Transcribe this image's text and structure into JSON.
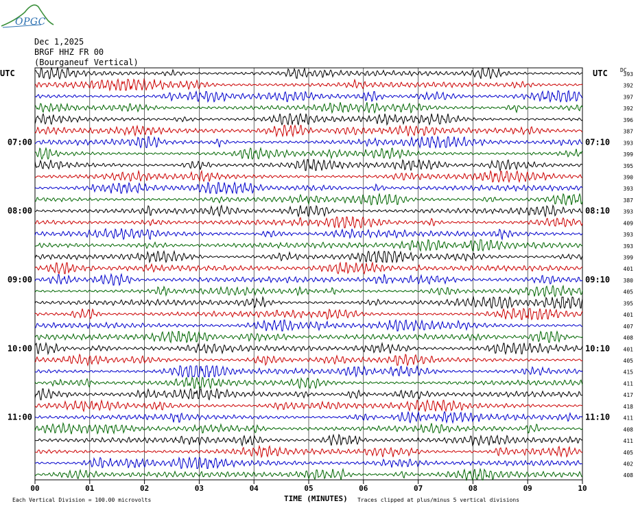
{
  "logo": {
    "text": "OPGC"
  },
  "header": {
    "date": "Dec 1,2025",
    "station": "BRGF HHZ FR 00",
    "location": "(Bourganeuf Vertical)"
  },
  "left_axis_title": "UTC",
  "right_axis_title": "UTC",
  "right_col_title": "DC",
  "footer": {
    "left_note": "Each Vertical Division =  100.00 microvolts",
    "xlabel": "TIME (MINUTES)",
    "right_note": "Traces clipped at plus/minus 5 vertical divisions"
  },
  "colors": {
    "trace_cycle": [
      "#000000",
      "#cc0000",
      "#0000cc",
      "#006600"
    ],
    "grid": "#000000"
  },
  "chart_data": {
    "type": "line",
    "title": "BRGF HHZ FR 00",
    "xlabel": "TIME (MINUTES)",
    "xlim": [
      0,
      10
    ],
    "x_ticks": [
      "00",
      "01",
      "02",
      "03",
      "04",
      "05",
      "06",
      "07",
      "08",
      "09",
      "10"
    ],
    "minutes_per_line": 10,
    "left_time_labels": [
      {
        "line": 6,
        "label": "07:00"
      },
      {
        "line": 12,
        "label": "08:00"
      },
      {
        "line": 18,
        "label": "09:00"
      },
      {
        "line": 24,
        "label": "10:00"
      },
      {
        "line": 30,
        "label": "11:00"
      }
    ],
    "right_time_labels": [
      {
        "line": 6,
        "label": "07:10"
      },
      {
        "line": 12,
        "label": "08:10"
      },
      {
        "line": 18,
        "label": "09:10"
      },
      {
        "line": 24,
        "label": "10:10"
      },
      {
        "line": 30,
        "label": "11:10"
      }
    ],
    "dc_offsets": [
      393,
      392,
      397,
      392,
      396,
      387,
      393,
      399,
      395,
      390,
      393,
      387,
      393,
      409,
      393,
      393,
      399,
      401,
      380,
      405,
      395,
      401,
      407,
      408,
      401,
      405,
      415,
      411,
      417,
      418,
      411,
      408,
      411,
      405,
      402,
      408
    ],
    "series_colors": [
      "black",
      "red",
      "blue",
      "green"
    ],
    "amplitude_scale": "Each Vertical Division = 100.00 microvolts",
    "clipping": "Traces clipped at plus/minus 5 vertical divisions"
  }
}
